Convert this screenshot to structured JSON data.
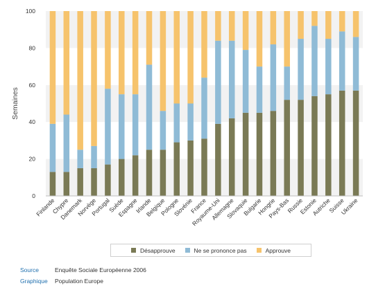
{
  "chart_data": {
    "type": "bar",
    "stacked": true,
    "categories": [
      "Finlande",
      "Chypre",
      "Danemark",
      "Norvège",
      "Portugal",
      "Suède",
      "Espagne",
      "Irlande",
      "Belgique",
      "Pologne",
      "Slovénie",
      "France",
      "Royaume-Uni",
      "Allemagne",
      "Slovaquie",
      "Bulgarie",
      "Hongrie",
      "Pays-Bas",
      "Russie",
      "Estonie",
      "Autriche",
      "Suisse",
      "Ukraine"
    ],
    "series": [
      {
        "name": "Désapprouve",
        "color": "#7a7a55",
        "values": [
          13,
          13,
          15,
          15,
          17,
          20,
          22,
          25,
          25,
          29,
          30,
          31,
          39,
          42,
          45,
          45,
          46,
          52,
          52,
          54,
          55,
          57,
          57
        ]
      },
      {
        "name": "Ne se prononce pas",
        "color": "#8fbbd6",
        "values": [
          26,
          31,
          10,
          12,
          41,
          35,
          33,
          46,
          21,
          21,
          20,
          33,
          45,
          42,
          34,
          25,
          36,
          18,
          33,
          38,
          30,
          32,
          29
        ]
      },
      {
        "name": "Approuve",
        "color": "#f6c36c",
        "values": [
          61,
          56,
          75,
          73,
          42,
          45,
          45,
          29,
          54,
          50,
          50,
          36,
          16,
          16,
          21,
          30,
          18,
          30,
          15,
          8,
          15,
          11,
          14
        ]
      }
    ],
    "ylabel": "Semaines",
    "ylim": [
      0,
      100
    ],
    "yticks": [
      0,
      20,
      40,
      60,
      80,
      100
    ],
    "grid": "alternating-bands",
    "legend": "bottom"
  },
  "footer": {
    "source_key": "Source",
    "source_value": "Enquête Sociale Européenne 2006",
    "graphic_key": "Graphique",
    "graphic_value": "Population Europe"
  }
}
